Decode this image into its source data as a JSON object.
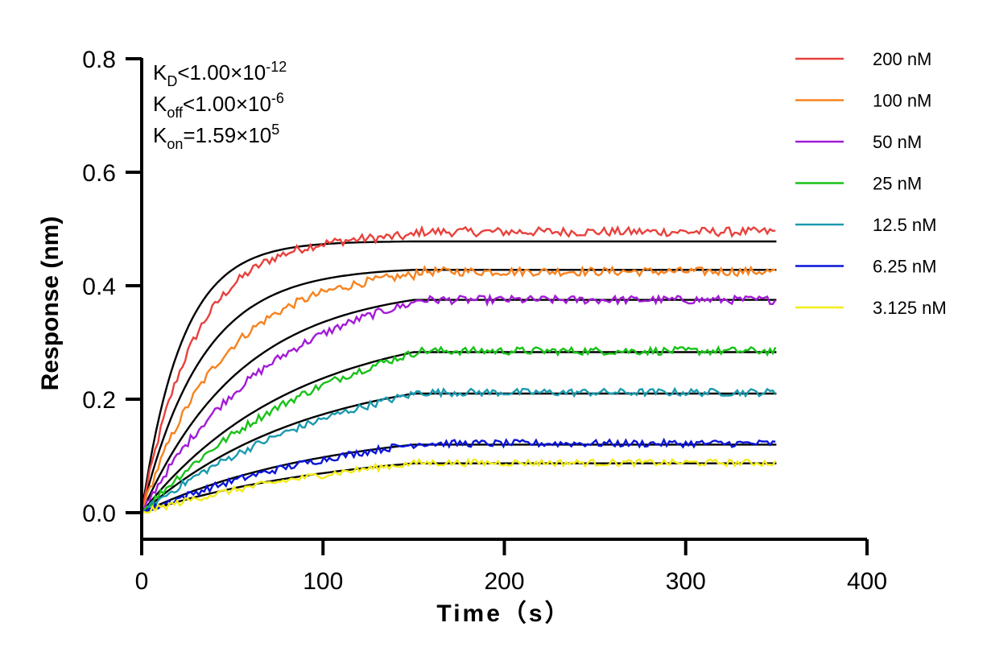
{
  "chart_data": {
    "type": "line",
    "xlabel": "Time（s）",
    "ylabel": "Response (nm)",
    "xlim": [
      0,
      400
    ],
    "ylim": [
      -0.05,
      0.8
    ],
    "x_ticks": [
      0,
      100,
      200,
      300,
      400
    ],
    "x_tick_labels": [
      "0",
      "100",
      "200",
      "300",
      "400"
    ],
    "y_ticks": [
      0.0,
      0.2,
      0.4,
      0.6,
      0.8
    ],
    "y_tick_labels": [
      "0.0",
      "0.2",
      "0.4",
      "0.6",
      "0.8"
    ],
    "grid": false,
    "legend_position": "top-right",
    "association_end": 150,
    "x_end": 350,
    "annotations": [
      {
        "main": "K",
        "sub": "D",
        "rest": "<1.00×10",
        "sup": "-12"
      },
      {
        "main": "K",
        "sub": "off",
        "rest": "<1.00×10",
        "sup": "-6"
      },
      {
        "main": "K",
        "sub": "on",
        "rest": "=1.59×10",
        "sup": "5"
      }
    ],
    "series": [
      {
        "name": "200 nM",
        "color": "#e8413c",
        "plateau": 0.495,
        "fit_plateau": 0.478
      },
      {
        "name": "100 nM",
        "color": "#f7821e",
        "plateau": 0.425,
        "fit_plateau": 0.428
      },
      {
        "name": "50 nM",
        "color": "#a21bd6",
        "plateau": 0.375,
        "fit_plateau": 0.375
      },
      {
        "name": "25 nM",
        "color": "#18c218",
        "plateau": 0.285,
        "fit_plateau": 0.283
      },
      {
        "name": "12.5 nM",
        "color": "#1a9aaf",
        "plateau": 0.212,
        "fit_plateau": 0.21
      },
      {
        "name": "6.25 nM",
        "color": "#0a14d8",
        "plateau": 0.122,
        "fit_plateau": 0.12
      },
      {
        "name": "3.125 nM",
        "color": "#f2ec1a",
        "plateau": 0.088,
        "fit_plateau": 0.087
      }
    ],
    "fit_line_color": "#000000"
  }
}
